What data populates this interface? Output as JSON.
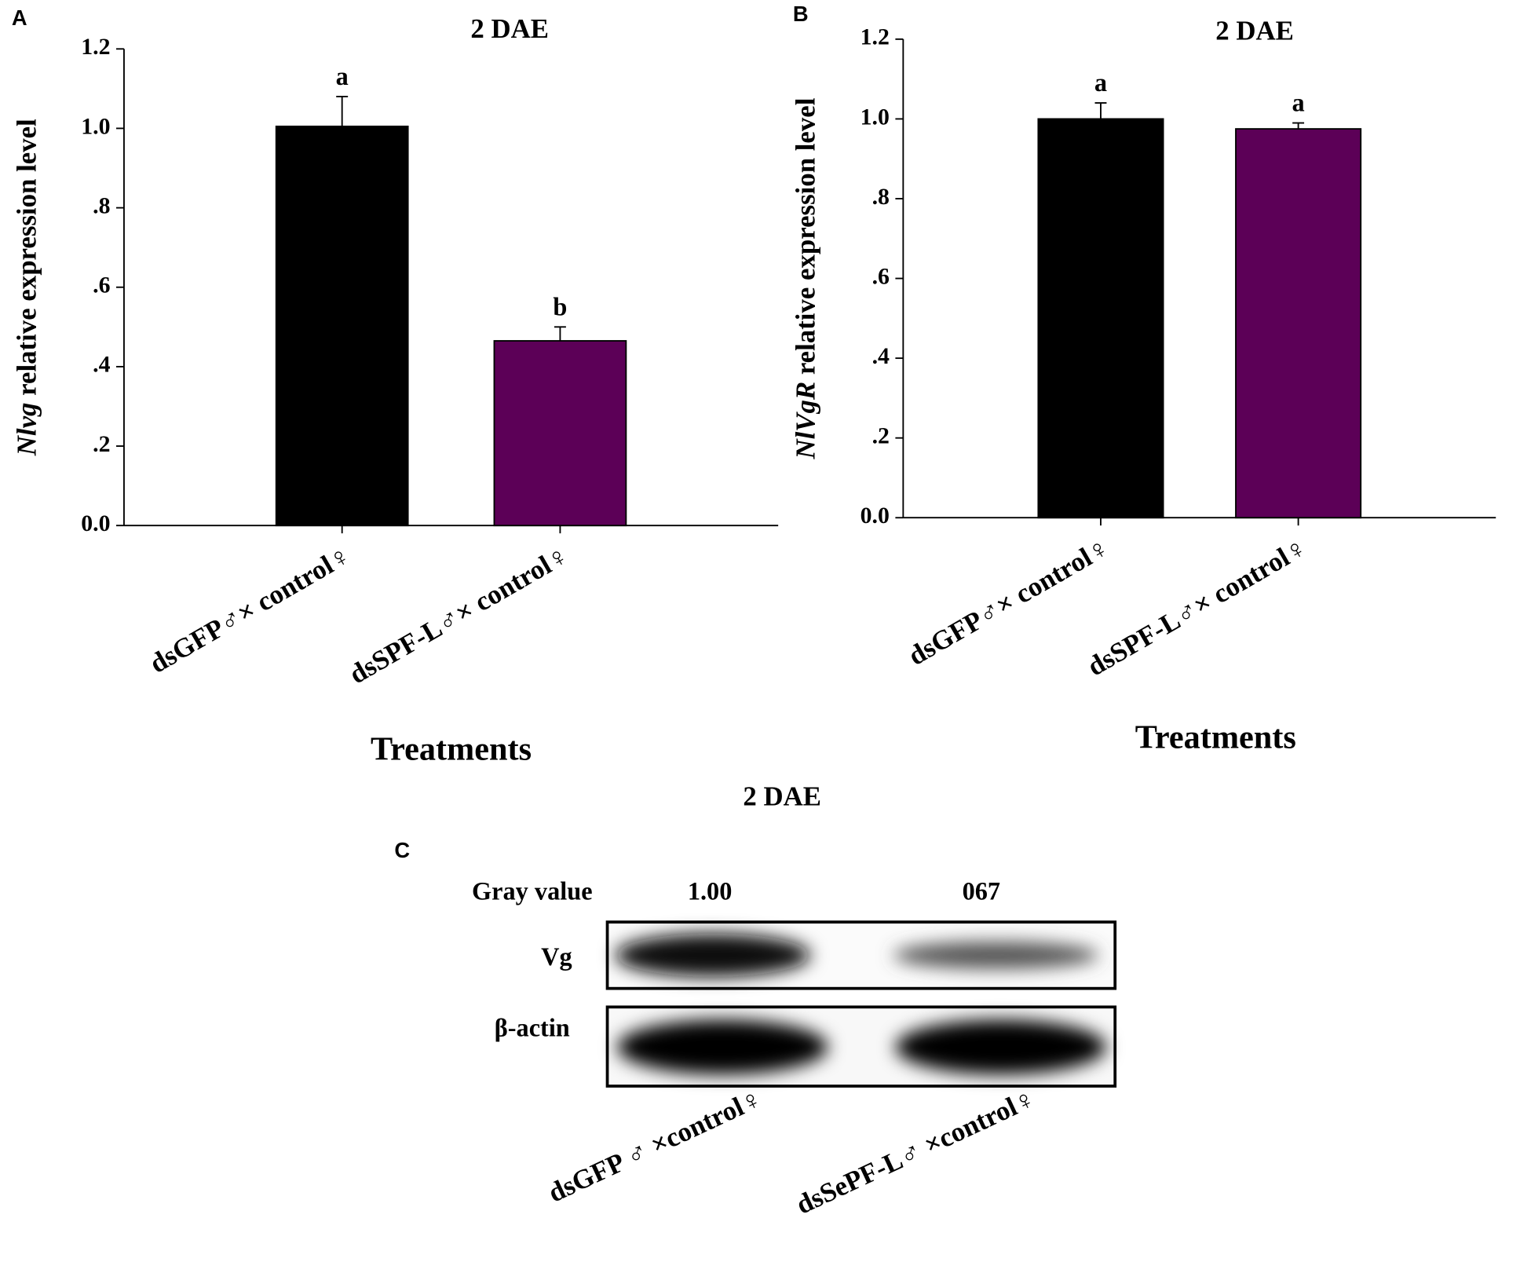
{
  "chart_data": [
    {
      "type": "bar",
      "panel": "A",
      "title": "2 DAE",
      "ylabel": [
        "Nlvg",
        "relative expression level"
      ],
      "xlabel": "Treatments",
      "categories": [
        "dsGFP♂× control♀",
        "dsSPF-L♂× control♀"
      ],
      "values": [
        1.005,
        0.465
      ],
      "errors": [
        0.075,
        0.035
      ],
      "annotations": [
        "a",
        "b"
      ],
      "colors": [
        "#000000",
        "#5c0057"
      ],
      "ylim": [
        0,
        1.2
      ],
      "yticks": [
        {
          "value": 0,
          "label": "0.0"
        },
        {
          "value": 0.2,
          "label": ".2"
        },
        {
          "value": 0.4,
          "label": ".4"
        },
        {
          "value": 0.6,
          "label": ".6"
        },
        {
          "value": 0.8,
          "label": ".8"
        },
        {
          "value": 1.0,
          "label": "1.0"
        },
        {
          "value": 1.2,
          "label": "1.2"
        }
      ]
    },
    {
      "type": "bar",
      "panel": "B",
      "title": "2 DAE",
      "ylabel": [
        "NlVgR",
        "relative expression level"
      ],
      "xlabel": "Treatments",
      "categories": [
        "dsGFP♂× control♀",
        "dsSPF-L♂× control♀"
      ],
      "values": [
        1.0,
        0.975
      ],
      "errors": [
        0.04,
        0.015
      ],
      "annotations": [
        "a",
        "a"
      ],
      "colors": [
        "#000000",
        "#5c0057"
      ],
      "ylim": [
        0,
        1.2
      ],
      "yticks": [
        {
          "value": 0,
          "label": "0.0"
        },
        {
          "value": 0.2,
          "label": ".2"
        },
        {
          "value": 0.4,
          "label": ".4"
        },
        {
          "value": 0.6,
          "label": ".6"
        },
        {
          "value": 0.8,
          "label": ".8"
        },
        {
          "value": 1.0,
          "label": "1.0"
        },
        {
          "value": 1.2,
          "label": "1.2"
        }
      ]
    }
  ],
  "blot": {
    "panel": "C",
    "title": "2 DAE",
    "gray_label": "Gray value",
    "gray_values": [
      "1.00",
      "067"
    ],
    "rows": [
      "Vg",
      "β-actin"
    ],
    "lanes": [
      "dsGFP ♂ ×control♀",
      "dsSePF-L♂ ×control♀"
    ]
  }
}
